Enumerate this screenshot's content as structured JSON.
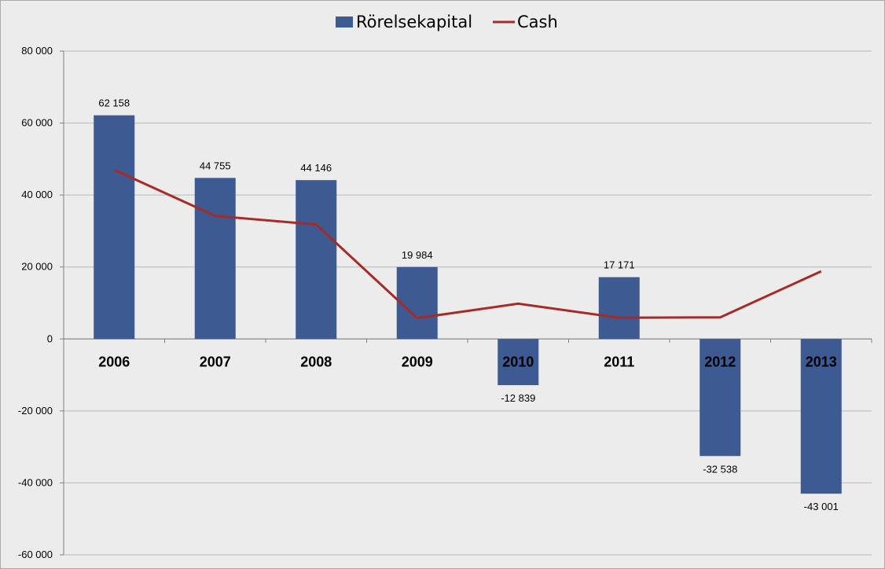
{
  "chart_data": {
    "type": "bar",
    "categories": [
      "2006",
      "2007",
      "2008",
      "2009",
      "2010",
      "2011",
      "2012",
      "2013"
    ],
    "series": [
      {
        "name": "Rörelsekapital",
        "kind": "bar",
        "color": "#3d5a93",
        "values": [
          62158,
          44755,
          44146,
          19984,
          -12839,
          17171,
          -32538,
          -43001
        ],
        "labels": [
          "62 158",
          "44 755",
          "44 146",
          "19 984",
          "-12 839",
          "17 171",
          "-32 538",
          "-43 001"
        ]
      },
      {
        "name": "Cash",
        "kind": "line",
        "color": "#a62b27",
        "values": [
          47000,
          34200,
          31800,
          5800,
          9800,
          5900,
          6000,
          18800
        ]
      }
    ],
    "ylim": [
      -60000,
      80000
    ],
    "yticks": [
      80000,
      60000,
      40000,
      20000,
      0,
      -20000,
      -40000,
      -60000
    ],
    "ytick_labels": [
      "80 000",
      "60 000",
      "40 000",
      "20 000",
      "0",
      "-20 000",
      "-40 000",
      "-60 000"
    ],
    "grid": true,
    "legend_position": "top-center",
    "title": "",
    "xlabel": "",
    "ylabel": ""
  }
}
